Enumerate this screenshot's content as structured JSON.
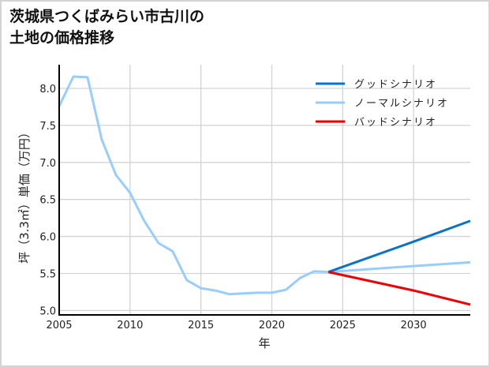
{
  "title": "茨城県つくばみらい市古川の\n土地の価格推移",
  "chart_data": {
    "type": "line",
    "title": "茨城県つくばみらい市古川の土地の価格推移",
    "xlabel": "年",
    "ylabel": "坪（3.3㎡）単価（万円）",
    "xlim": [
      2005,
      2034
    ],
    "ylim": [
      4.94,
      8.32
    ],
    "xticks": [
      2005,
      2010,
      2015,
      2020,
      2025,
      2030
    ],
    "xtick_labels": [
      "2005",
      "2010",
      "2015",
      "2020",
      "2025",
      "2030"
    ],
    "yticks": [
      5.0,
      5.5,
      6.0,
      6.5,
      7.0,
      7.5,
      8.0
    ],
    "ytick_labels": [
      "5.0",
      "5.5",
      "6.0",
      "6.5",
      "7.0",
      "7.5",
      "8.0"
    ],
    "grid": true,
    "legend_position": "upper right",
    "series": [
      {
        "name": "グッドシナリオ",
        "color": "#0a72c8",
        "x": [
          2024,
          2030,
          2034
        ],
        "values": [
          5.52,
          5.93,
          6.21
        ]
      },
      {
        "name": "ノーマルシナリオ",
        "color": "#99ccff",
        "x": [
          2005,
          2006,
          2007,
          2008,
          2009,
          2010,
          2011,
          2012,
          2013,
          2014,
          2015,
          2016,
          2017,
          2018,
          2019,
          2020,
          2021,
          2022,
          2023,
          2024,
          2030,
          2034
        ],
        "values": [
          7.76,
          8.16,
          8.15,
          7.31,
          6.83,
          6.59,
          6.21,
          5.91,
          5.8,
          5.41,
          5.3,
          5.27,
          5.22,
          5.23,
          5.24,
          5.24,
          5.28,
          5.44,
          5.53,
          5.52,
          5.6,
          5.65
        ]
      },
      {
        "name": "バッドシナリオ",
        "color": "#ee0000",
        "x": [
          2024,
          2030,
          2034
        ],
        "values": [
          5.52,
          5.27,
          5.08
        ]
      }
    ]
  }
}
